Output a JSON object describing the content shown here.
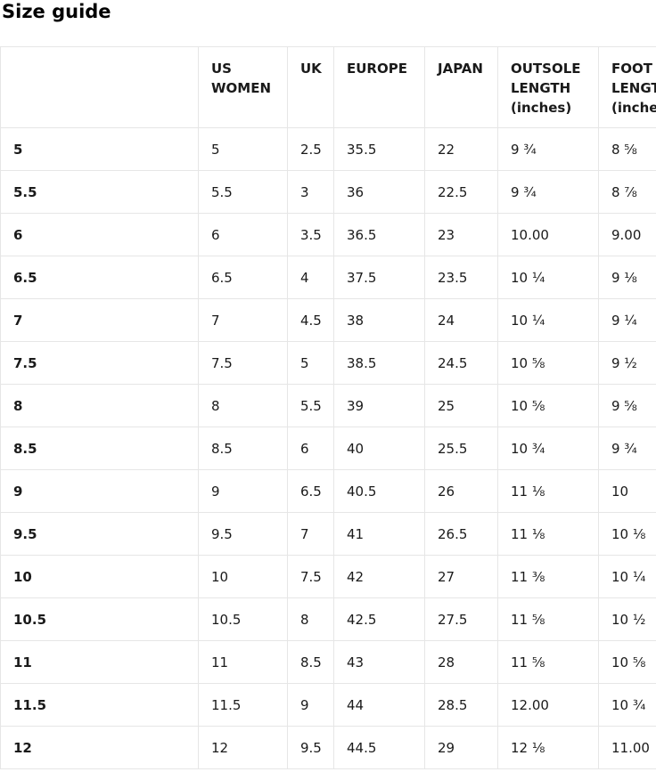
{
  "page_title": "Size guide",
  "colors": {
    "background": "#ffffff",
    "text": "#1a1a1a",
    "heading_text": "#000000",
    "table_border": "#e6e6e6"
  },
  "table": {
    "columns": [
      {
        "key": "label",
        "label": ""
      },
      {
        "key": "us_women",
        "label": "US WOMEN"
      },
      {
        "key": "uk",
        "label": "UK"
      },
      {
        "key": "europe",
        "label": "EUROPE"
      },
      {
        "key": "japan",
        "label": "JAPAN"
      },
      {
        "key": "outsole_length",
        "label": "OUTSOLE LENGTH (inches)"
      },
      {
        "key": "foot_length",
        "label": "FOOT LENGTH (inches)"
      }
    ],
    "rows": [
      {
        "label": "5",
        "us_women": "5",
        "uk": "2.5",
        "europe": "35.5",
        "japan": "22",
        "outsole_length": "9 ¾",
        "foot_length": "8 ⅝"
      },
      {
        "label": "5.5",
        "us_women": "5.5",
        "uk": "3",
        "europe": "36",
        "japan": "22.5",
        "outsole_length": "9 ¾",
        "foot_length": "8 ⅞"
      },
      {
        "label": "6",
        "us_women": "6",
        "uk": "3.5",
        "europe": "36.5",
        "japan": "23",
        "outsole_length": "10.00",
        "foot_length": "9.00"
      },
      {
        "label": "6.5",
        "us_women": "6.5",
        "uk": "4",
        "europe": "37.5",
        "japan": "23.5",
        "outsole_length": "10 ¼",
        "foot_length": "9 ⅛"
      },
      {
        "label": "7",
        "us_women": "7",
        "uk": "4.5",
        "europe": "38",
        "japan": "24",
        "outsole_length": "10 ¼",
        "foot_length": "9 ¼"
      },
      {
        "label": "7.5",
        "us_women": "7.5",
        "uk": "5",
        "europe": "38.5",
        "japan": "24.5",
        "outsole_length": "10 ⅝",
        "foot_length": "9 ½"
      },
      {
        "label": "8",
        "us_women": "8",
        "uk": "5.5",
        "europe": "39",
        "japan": "25",
        "outsole_length": "10 ⅝",
        "foot_length": "9 ⅝"
      },
      {
        "label": "8.5",
        "us_women": "8.5",
        "uk": "6",
        "europe": "40",
        "japan": "25.5",
        "outsole_length": "10 ¾",
        "foot_length": "9 ¾"
      },
      {
        "label": "9",
        "us_women": "9",
        "uk": "6.5",
        "europe": "40.5",
        "japan": "26",
        "outsole_length": "11 ⅛",
        "foot_length": "10"
      },
      {
        "label": "9.5",
        "us_women": "9.5",
        "uk": "7",
        "europe": "41",
        "japan": "26.5",
        "outsole_length": "11 ⅛",
        "foot_length": "10 ⅛"
      },
      {
        "label": "10",
        "us_women": "10",
        "uk": "7.5",
        "europe": "42",
        "japan": "27",
        "outsole_length": "11 ⅜",
        "foot_length": "10 ¼"
      },
      {
        "label": "10.5",
        "us_women": "10.5",
        "uk": "8",
        "europe": "42.5",
        "japan": "27.5",
        "outsole_length": "11 ⅝",
        "foot_length": "10 ½"
      },
      {
        "label": "11",
        "us_women": "11",
        "uk": "8.5",
        "europe": "43",
        "japan": "28",
        "outsole_length": "11 ⅝",
        "foot_length": "10 ⅝"
      },
      {
        "label": "11.5",
        "us_women": "11.5",
        "uk": "9",
        "europe": "44",
        "japan": "28.5",
        "outsole_length": "12.00",
        "foot_length": "10 ¾"
      },
      {
        "label": "12",
        "us_women": "12",
        "uk": "9.5",
        "europe": "44.5",
        "japan": "29",
        "outsole_length": "12 ⅛",
        "foot_length": "11.00"
      }
    ]
  }
}
